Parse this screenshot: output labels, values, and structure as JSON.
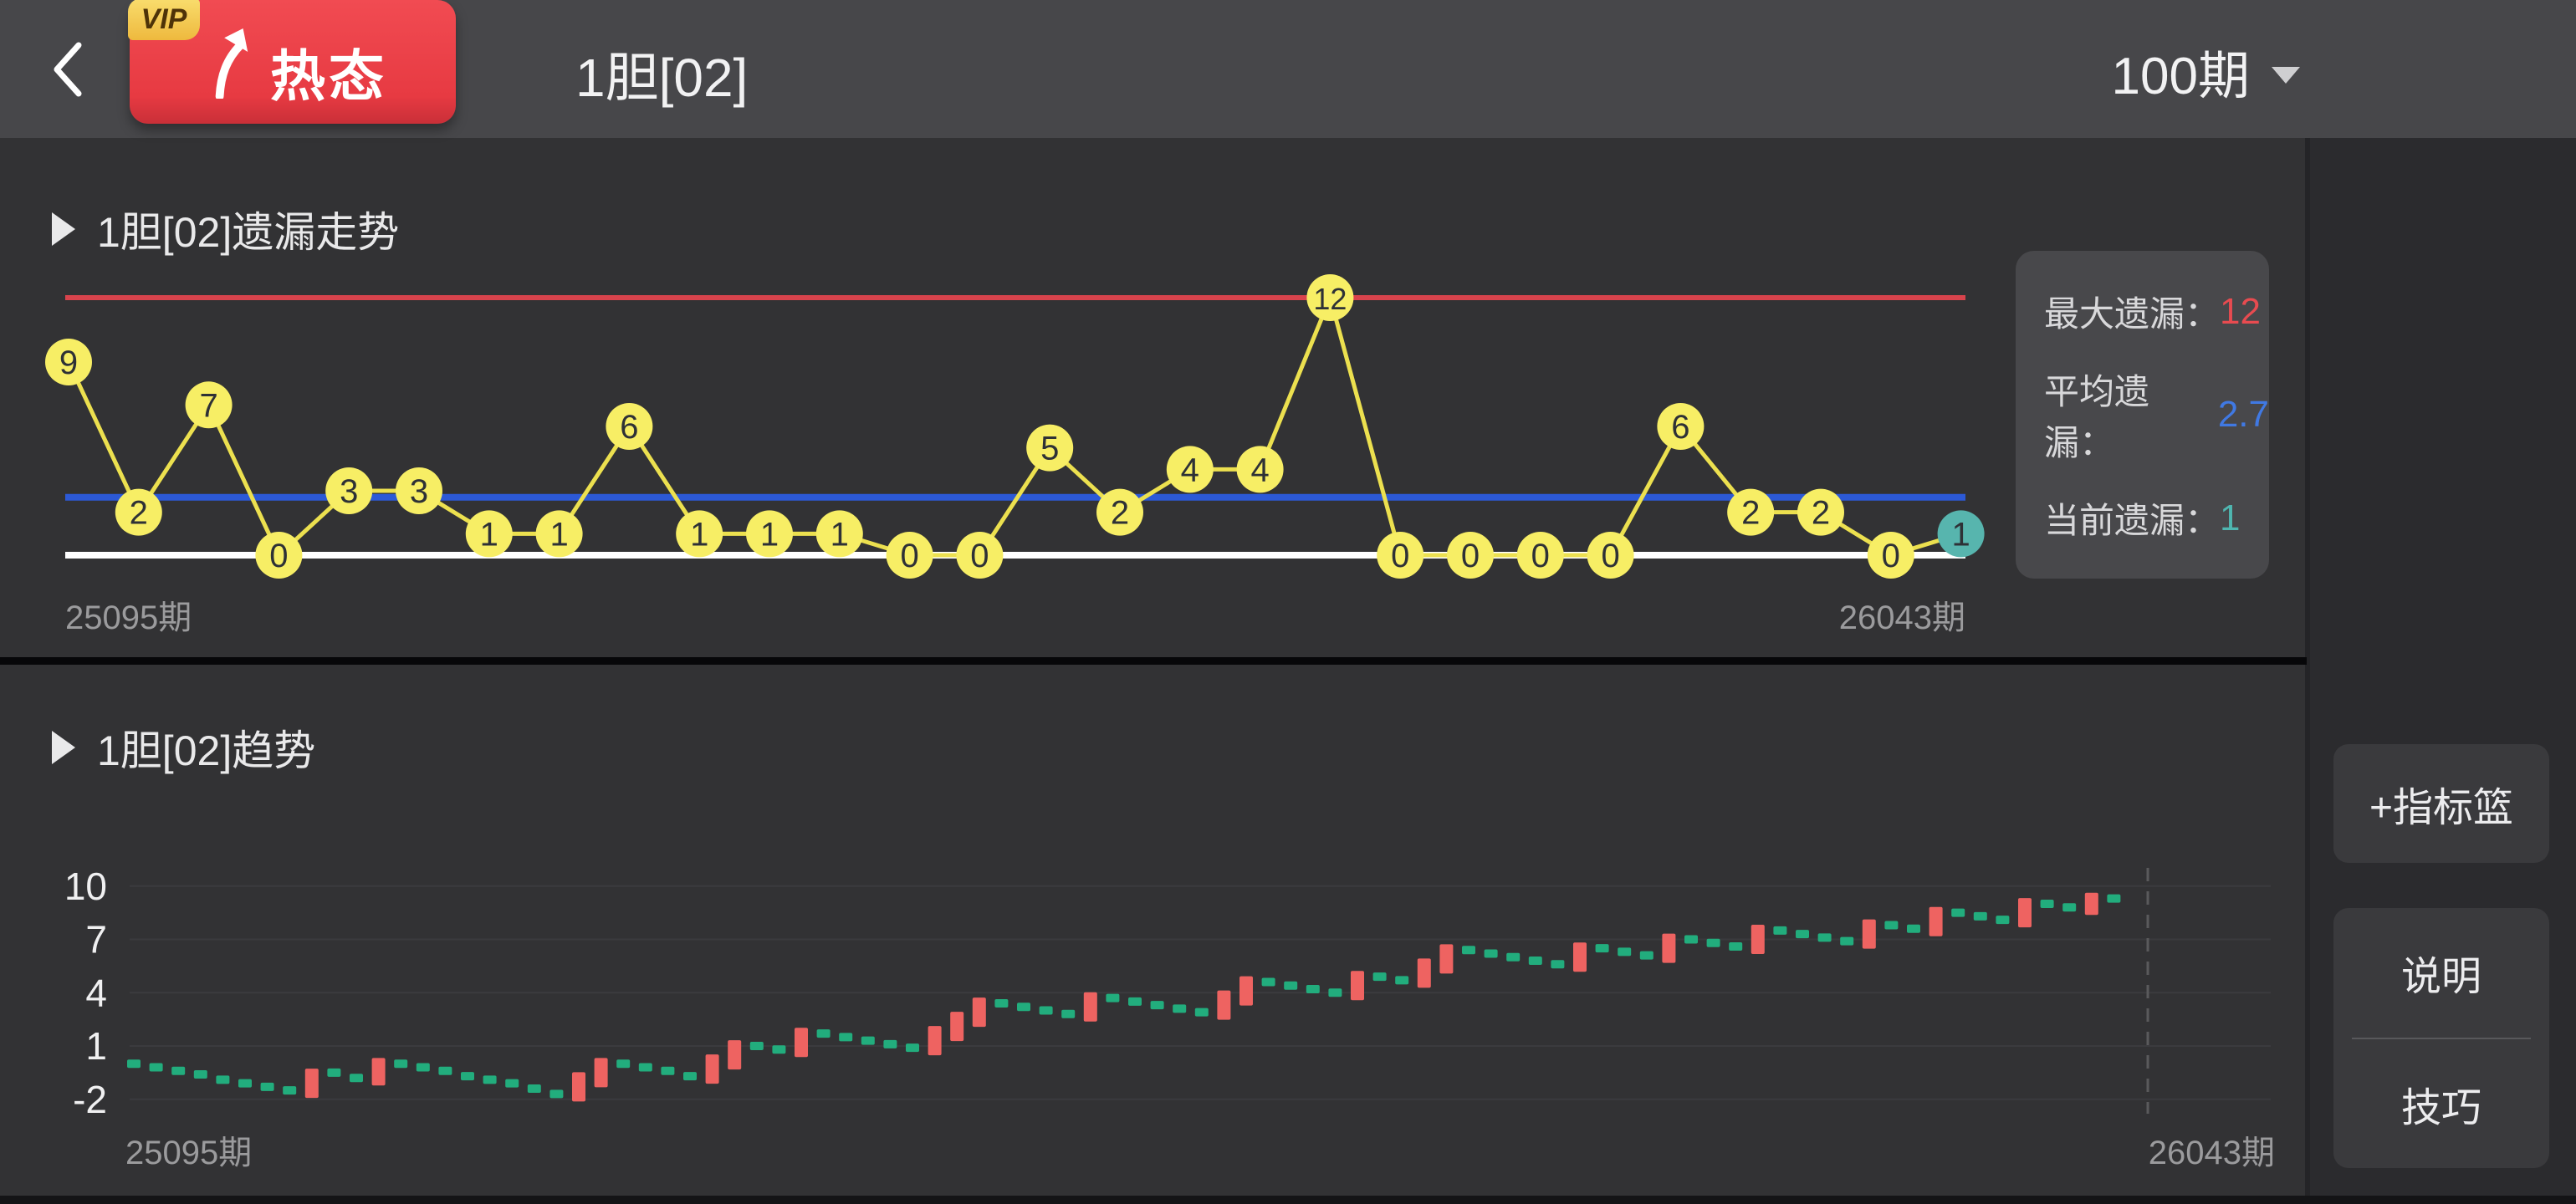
{
  "header": {
    "back_icon": "chevron-left",
    "badge": {
      "vip": "VIP",
      "label": "热态",
      "arrow": "curved-up-arrow"
    },
    "title": "1胆[02]",
    "period_selector": {
      "value": "100期",
      "icon": "caret-down"
    }
  },
  "sections": {
    "omission": {
      "title": "1胆[02]遗漏走势"
    },
    "trend": {
      "title": "1胆[02]趋势"
    }
  },
  "stats": {
    "rows": [
      {
        "label": "最大遗漏：",
        "value": "12",
        "color": "#e84b50"
      },
      {
        "label": "平均遗漏：",
        "value": "2.7",
        "color": "#4079e3"
      },
      {
        "label": "当前遗漏：",
        "value": "1",
        "color": "#4fb6b0"
      }
    ]
  },
  "sidebar": {
    "add_indicator": "+指标篮",
    "explain": "说明",
    "tips": "技巧"
  },
  "chart_data": [
    {
      "type": "line",
      "title": "1胆[02]遗漏走势",
      "values": [
        9,
        2,
        7,
        0,
        3,
        3,
        1,
        1,
        6,
        1,
        1,
        1,
        0,
        0,
        5,
        2,
        4,
        4,
        12,
        0,
        0,
        0,
        0,
        6,
        2,
        2,
        0,
        1
      ],
      "current_index": 27,
      "x_start_label": "25095期",
      "x_end_label": "26043期",
      "ylim": [
        0,
        12
      ],
      "reference_lines": [
        {
          "name": "max",
          "value": 12,
          "color": "#d8434c"
        },
        {
          "name": "avg",
          "value": 2.7,
          "color": "#2c59d6"
        },
        {
          "name": "zero",
          "value": 0,
          "color": "#ffffff"
        }
      ],
      "point_color": "#f7ee65",
      "current_point_color": "#57b5ae",
      "line_color": "#ece04f",
      "point_text_color": "#2e3136",
      "label_color": "#9b9b9d"
    },
    {
      "type": "bar",
      "title": "1胆[02]趋势",
      "yticks": [
        10,
        7,
        4,
        1,
        -2
      ],
      "ylim": [
        -2,
        10
      ],
      "x_start_label": "25095期",
      "x_end_label": "26043期",
      "up_color": "#ee6361",
      "move_color": "#22ad7d",
      "grid_color": "#3b3b3e",
      "dash_line_color": "#5a5a5c",
      "label_color": "#9b9b9d",
      "tick_color": "#f0f0f1",
      "values": [
        0,
        -0.2,
        -0.4,
        -0.6,
        -0.9,
        -1.1,
        -1.3,
        -1.5,
        -0.7,
        -0.5,
        -0.8,
        -0.1,
        0.0,
        -0.2,
        -0.4,
        -0.7,
        -0.9,
        -1.1,
        -1.4,
        -1.7,
        -0.9,
        -0.1,
        0.0,
        -0.2,
        -0.4,
        -0.7,
        0.1,
        0.9,
        1.0,
        0.8,
        1.6,
        1.7,
        1.5,
        1.3,
        1.1,
        0.9,
        1.7,
        2.5,
        3.3,
        3.4,
        3.2,
        3.0,
        2.8,
        3.6,
        3.7,
        3.5,
        3.3,
        3.1,
        2.9,
        3.7,
        4.5,
        4.6,
        4.4,
        4.2,
        4.0,
        4.8,
        4.9,
        4.7,
        5.5,
        6.3,
        6.4,
        6.2,
        6.0,
        5.8,
        5.6,
        6.4,
        6.5,
        6.3,
        6.1,
        6.9,
        7.0,
        6.8,
        6.6,
        7.4,
        7.5,
        7.3,
        7.1,
        6.9,
        7.7,
        7.8,
        7.6,
        8.4,
        8.5,
        8.3,
        8.1,
        8.9,
        9.0,
        8.8,
        9.2,
        9.3
      ],
      "types": [
        "g",
        "g",
        "g",
        "g",
        "g",
        "g",
        "g",
        "g",
        "r",
        "g",
        "g",
        "r",
        "g",
        "g",
        "g",
        "g",
        "g",
        "g",
        "g",
        "g",
        "r",
        "r",
        "g",
        "g",
        "g",
        "g",
        "r",
        "r",
        "g",
        "g",
        "r",
        "g",
        "g",
        "g",
        "g",
        "g",
        "r",
        "r",
        "r",
        "g",
        "g",
        "g",
        "g",
        "r",
        "g",
        "g",
        "g",
        "g",
        "g",
        "r",
        "r",
        "g",
        "g",
        "g",
        "g",
        "r",
        "g",
        "g",
        "r",
        "r",
        "g",
        "g",
        "g",
        "g",
        "g",
        "r",
        "g",
        "g",
        "g",
        "r",
        "g",
        "g",
        "g",
        "r",
        "g",
        "g",
        "g",
        "g",
        "r",
        "g",
        "g",
        "r",
        "g",
        "g",
        "g",
        "r",
        "g",
        "g",
        "r",
        "g"
      ]
    }
  ]
}
